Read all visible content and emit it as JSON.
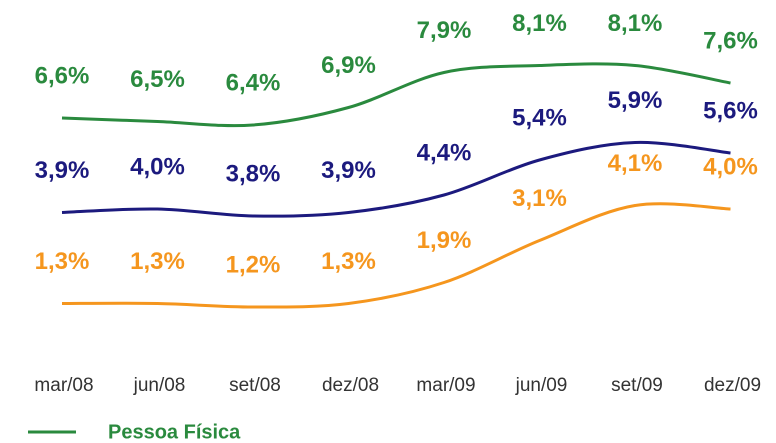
{
  "chart_data": {
    "type": "line",
    "categories": [
      "mar/08",
      "jun/08",
      "set/08",
      "dez/08",
      "mar/09",
      "jun/09",
      "set/09",
      "dez/09"
    ],
    "series": [
      {
        "name": "Pessoa Física",
        "color": "#2a8a3e",
        "values": [
          6.6,
          6.5,
          6.4,
          6.9,
          7.9,
          8.1,
          8.1,
          7.6
        ],
        "value_labels": [
          "6,6%",
          "6,5%",
          "6,4%",
          "6,9%",
          "7,9%",
          "8,1%",
          "8,1%",
          "7,6%"
        ]
      },
      {
        "color": "#1c1a7e",
        "values": [
          3.9,
          4.0,
          3.8,
          3.9,
          4.4,
          5.4,
          5.9,
          5.6
        ],
        "value_labels": [
          "3,9%",
          "4,0%",
          "3,8%",
          "3,9%",
          "4,4%",
          "5,4%",
          "5,9%",
          "5,6%"
        ]
      },
      {
        "color": "#f5961e",
        "values": [
          1.3,
          1.3,
          1.2,
          1.3,
          1.9,
          3.1,
          4.1,
          4.0
        ],
        "value_labels": [
          "1,3%",
          "1,3%",
          "1,2%",
          "1,3%",
          "1,9%",
          "3,1%",
          "4,1%",
          "4,0%"
        ]
      }
    ],
    "ylim": [
      0,
      10
    ]
  }
}
